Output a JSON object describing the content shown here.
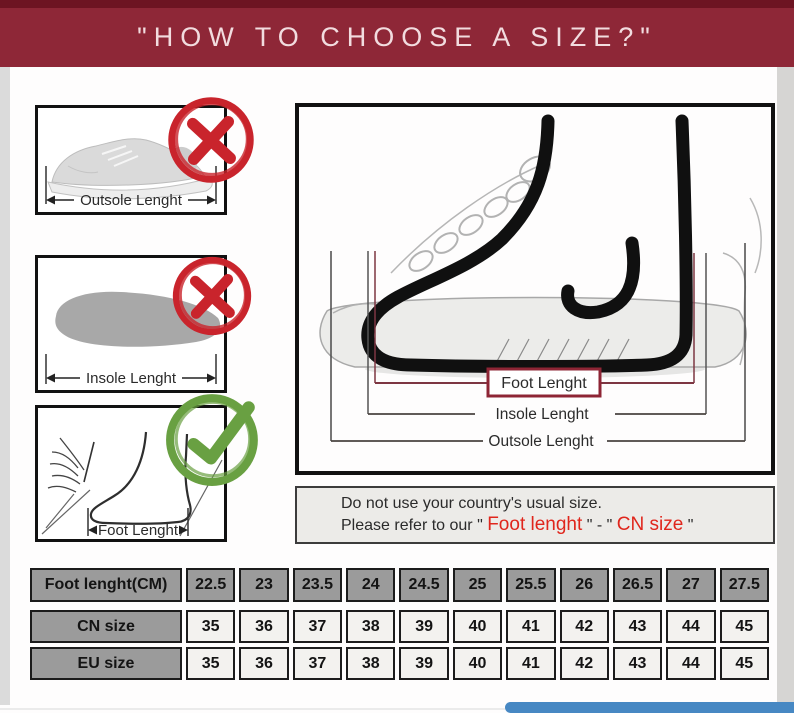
{
  "header": {
    "title": "\"HOW TO CHOOSE A SIZE?\""
  },
  "colors": {
    "band_maroon": "#8e2737",
    "band_dark": "#6d1422",
    "wrong_red": "#c9242c",
    "correct_green": "#69a042",
    "note_red": "#e0261c",
    "scrollbar_blue": "#4788c3",
    "table_grey": "#9b9b9b",
    "table_light": "#f3f2ef"
  },
  "left_panels": [
    {
      "label": "Outsole Lenght",
      "badge": "red-x"
    },
    {
      "label": "Insole Lenght",
      "badge": "red-x"
    },
    {
      "label": "Foot Lenght",
      "badge": "green-check"
    }
  ],
  "diagram": {
    "foot_label": "Foot Lenght",
    "insole_label": "Insole Lenght",
    "outsole_label": "Outsole Lenght"
  },
  "note": {
    "line1": "Do not use your country's usual size.",
    "line2_prefix": "Please refer to our \" ",
    "highlight_foot": "Foot lenght",
    "separator": " \" - \" ",
    "highlight_cn": "CN size",
    "suffix": " \""
  },
  "size_table": {
    "rows": [
      {
        "label": "Foot lenght(CM)",
        "values": [
          "22.5",
          "23",
          "23.5",
          "24",
          "24.5",
          "25",
          "25.5",
          "26",
          "26.5",
          "27",
          "27.5"
        ]
      },
      {
        "label": "CN size",
        "values": [
          "35",
          "36",
          "37",
          "38",
          "39",
          "40",
          "41",
          "42",
          "43",
          "44",
          "45"
        ]
      },
      {
        "label": "EU size",
        "values": [
          "35",
          "36",
          "37",
          "38",
          "39",
          "40",
          "41",
          "42",
          "43",
          "44",
          "45"
        ]
      }
    ]
  }
}
